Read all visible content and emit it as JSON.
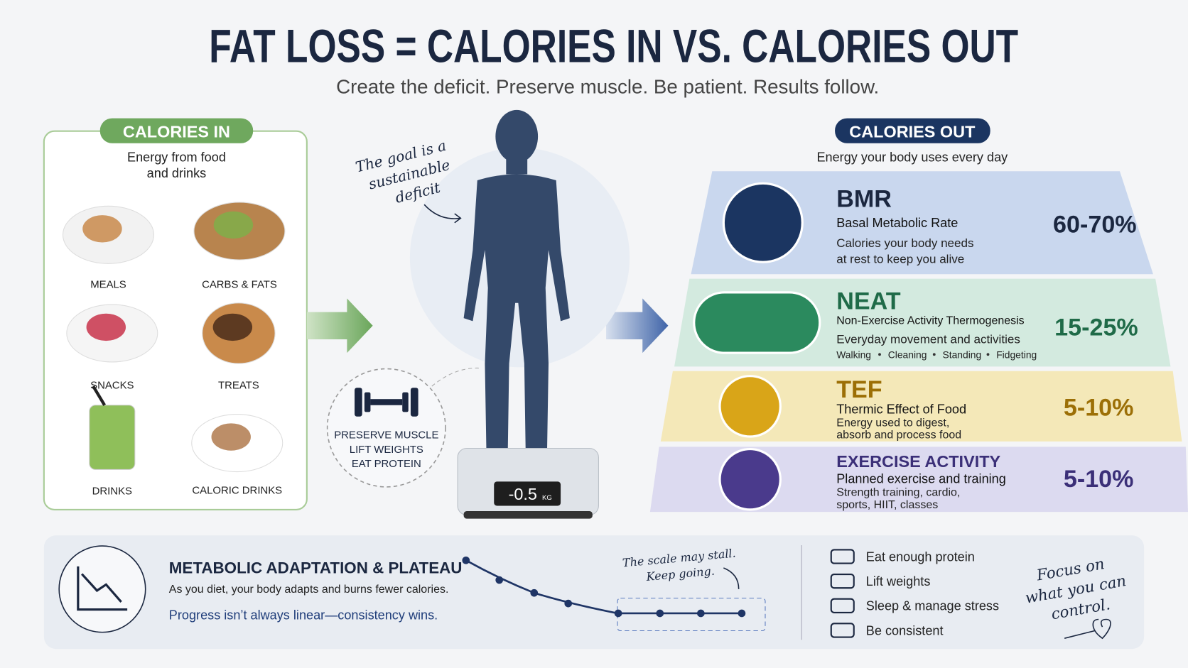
{
  "header": {
    "title": "FAT LOSS = CALORIES IN VS. CALORIES OUT",
    "subtitle": "Create the deficit. Preserve muscle. Be patient. Results follow."
  },
  "calories_in": {
    "label": "CALORIES IN",
    "description": [
      "Energy from food",
      "and drinks"
    ],
    "items": [
      "MEALS",
      "CARBS & FATS",
      "SNACKS",
      "TREATS",
      "DRINKS",
      "CALORIC DRINKS"
    ]
  },
  "center": {
    "note": [
      "The goal is a",
      "sustainable",
      "deficit"
    ],
    "muscle": [
      "PRESERVE MUSCLE",
      "LIFT WEIGHTS",
      "EAT PROTEIN"
    ],
    "scale_reading": "-0.5",
    "scale_unit": "KG"
  },
  "calories_out": {
    "label": "CALORIES OUT",
    "description": "Energy your body uses every day",
    "components": [
      {
        "name": "BMR",
        "full_name": "Basal Metabolic Rate",
        "description": [
          "Calories your body needs",
          "at rest to keep you alive"
        ],
        "share": "60-70%"
      },
      {
        "name": "NEAT",
        "full_name": "Non-Exercise Activity Thermogenesis",
        "description": [
          "Everyday movement and activities"
        ],
        "activities": [
          "Walking",
          "Cleaning",
          "Standing",
          "Fidgeting"
        ],
        "share": "15-25%"
      },
      {
        "name": "TEF",
        "full_name": "Thermic Effect of Food",
        "description": [
          "Energy used to digest,",
          "absorb and process food"
        ],
        "share": "5-10%"
      },
      {
        "name": "EXERCISE ACTIVITY",
        "full_name": "Planned exercise and training",
        "description": [
          "Strength training, cardio,",
          "sports, HIIT, classes"
        ],
        "share": "5-10%"
      }
    ]
  },
  "footer": {
    "title": "METABOLIC ADAPTATION & PLATEAU",
    "text": "As you diet, your body adapts and burns fewer calories.",
    "highlight": "Progress isn’t always linear—consistency wins.",
    "note": [
      "The scale may stall.",
      "Keep going."
    ],
    "tips": [
      "Eat enough protein",
      "Lift weights",
      "Sleep & manage stress",
      "Be consistent"
    ],
    "signoff": [
      "Focus on",
      "what you can",
      "control."
    ]
  }
}
